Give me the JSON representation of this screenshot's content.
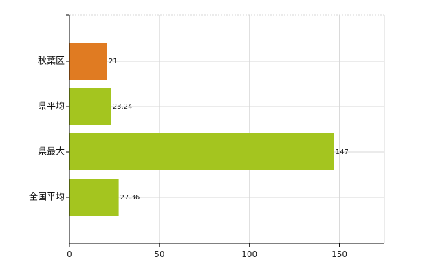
{
  "chart_data": {
    "type": "bar",
    "orientation": "horizontal",
    "title": "",
    "xlabel": "",
    "ylabel": "",
    "categories": [
      "秋葉区",
      "県平均",
      "県最大",
      "全国平均"
    ],
    "values": [
      21,
      23.24,
      147,
      27.36
    ],
    "value_labels": [
      "21",
      "23.24",
      "147",
      "27.36"
    ],
    "bar_colors": [
      "#e07b22",
      "#a4c51f",
      "#a4c51f",
      "#a4c51f"
    ],
    "xlim": [
      0,
      175
    ],
    "xticks": [
      0,
      50,
      100,
      150
    ],
    "xtick_labels": [
      "0",
      "50",
      "100",
      "150"
    ],
    "grid": true,
    "legend": "none"
  }
}
